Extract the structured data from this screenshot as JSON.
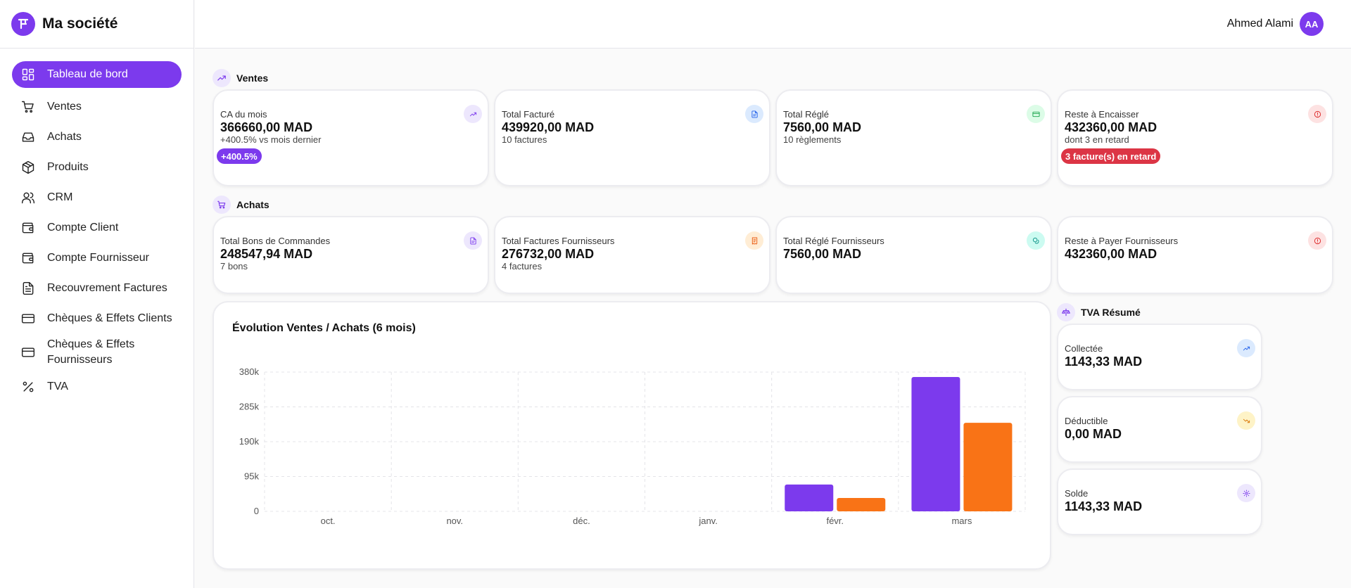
{
  "app": {
    "name": "Ma société"
  },
  "user": {
    "name": "Ahmed Alami",
    "initials": "AA"
  },
  "sidebar": {
    "items": [
      {
        "label": "Tableau de bord",
        "icon": "dashboard-icon",
        "active": true
      },
      {
        "label": "Ventes",
        "icon": "cart-icon"
      },
      {
        "label": "Achats",
        "icon": "inbox-icon"
      },
      {
        "label": "Produits",
        "icon": "box-icon"
      },
      {
        "label": "CRM",
        "icon": "users-icon"
      },
      {
        "label": "Compte Client",
        "icon": "wallet-icon"
      },
      {
        "label": "Compte Fournisseur",
        "icon": "wallet-icon"
      },
      {
        "label": "Recouvrement Factures",
        "icon": "document-icon"
      },
      {
        "label": "Chèques & Effets Clients",
        "icon": "credit-card-icon"
      },
      {
        "label": "Chèques & Effets Fournisseurs",
        "icon": "credit-card-icon"
      },
      {
        "label": "TVA",
        "icon": "percent-icon"
      }
    ]
  },
  "ventes": {
    "title": "Ventes",
    "cards": [
      {
        "label": "CA du mois",
        "value": "366660,00 MAD",
        "sub": "+400.5% vs mois dernier",
        "badge": "+400.5%",
        "badge_color": "#7c3aed",
        "icon": "trending-up-icon",
        "icon_bg": "#ede7fd",
        "icon_color": "#7c3aed"
      },
      {
        "label": "Total Facturé",
        "value": "439920,00 MAD",
        "sub": "10 factures",
        "icon": "file-icon",
        "icon_bg": "#dbeafe",
        "icon_color": "#2563eb"
      },
      {
        "label": "Total Réglé",
        "value": "7560,00 MAD",
        "sub": "10 règlements",
        "icon": "card-icon",
        "icon_bg": "#dcfce7",
        "icon_color": "#16a34a"
      },
      {
        "label": "Reste à Encaisser",
        "value": "432360,00 MAD",
        "sub": "dont 3 en retard",
        "badge": "3 facture(s) en retard",
        "badge_color": "#dc3545",
        "icon": "alert-icon",
        "icon_bg": "#fde2e2",
        "icon_color": "#dc2626"
      }
    ]
  },
  "achats": {
    "title": "Achats",
    "cards": [
      {
        "label": "Total Bons de Commandes",
        "value": "248547,94 MAD",
        "sub": "7 bons",
        "icon": "file-icon",
        "icon_bg": "#ede7fd",
        "icon_color": "#7c3aed"
      },
      {
        "label": "Total Factures Fournisseurs",
        "value": "276732,00 MAD",
        "sub": "4 factures",
        "icon": "receipt-icon",
        "icon_bg": "#ffedd5",
        "icon_color": "#ea580c"
      },
      {
        "label": "Total Réglé Fournisseurs",
        "value": "7560,00 MAD",
        "sub": "",
        "icon": "coins-icon",
        "icon_bg": "#ccfbf1",
        "icon_color": "#0d9488"
      },
      {
        "label": "Reste à Payer Fournisseurs",
        "value": "432360,00 MAD",
        "sub": "",
        "icon": "alert-icon",
        "icon_bg": "#fde2e2",
        "icon_color": "#dc2626"
      }
    ]
  },
  "tva": {
    "title": "TVA Résumé",
    "cards": [
      {
        "label": "Collectée",
        "value": "1143,33 MAD",
        "icon": "trending-up-icon",
        "icon_bg": "#dbeafe",
        "icon_color": "#2563eb"
      },
      {
        "label": "Déductible",
        "value": "0,00 MAD",
        "icon": "trending-down-icon",
        "icon_bg": "#fef3c7",
        "icon_color": "#d97706"
      },
      {
        "label": "Solde",
        "value": "1143,33 MAD",
        "icon": "settings-icon",
        "icon_bg": "#ede7fd",
        "icon_color": "#7c3aed"
      }
    ]
  },
  "chart_data": {
    "type": "bar",
    "title": "Évolution Ventes / Achats (6 mois)",
    "categories": [
      "oct.",
      "nov.",
      "déc.",
      "janv.",
      "févr.",
      "mars"
    ],
    "series": [
      {
        "values": [
          0,
          0,
          0,
          0,
          73200,
          366660
        ],
        "color": "#7c3aed"
      },
      {
        "values": [
          0,
          0,
          0,
          0,
          36500,
          241500
        ],
        "color": "#f97316"
      }
    ],
    "yticks": [
      "0",
      "95k",
      "190k",
      "285k",
      "380k"
    ],
    "ytick_values": [
      0,
      95000,
      190000,
      285000,
      380000
    ],
    "ylim": [
      0,
      380000
    ],
    "grid": true
  }
}
